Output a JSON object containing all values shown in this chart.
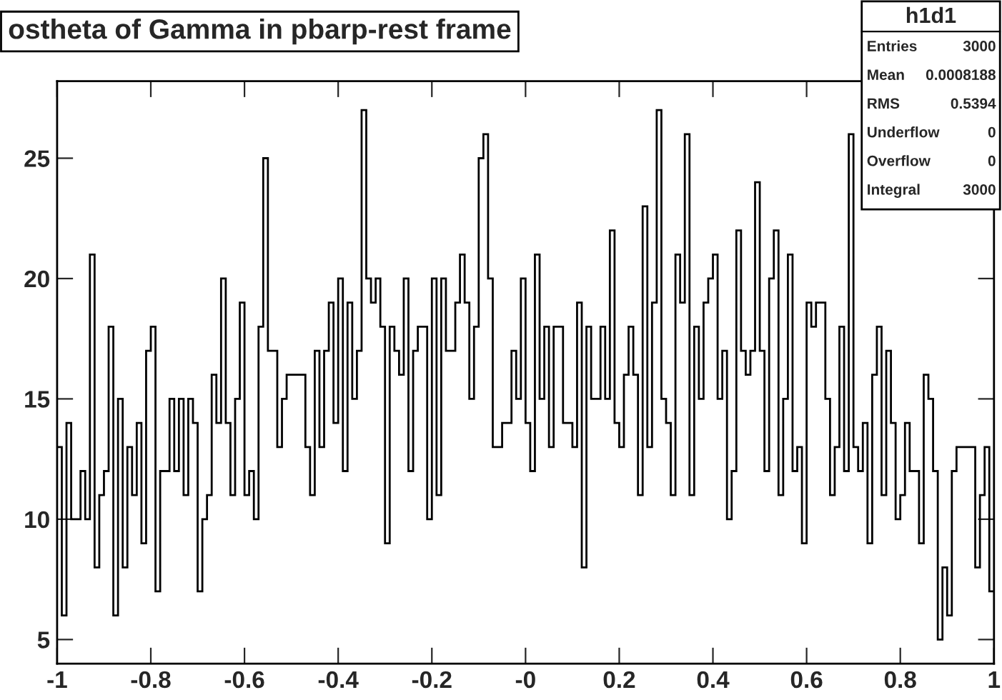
{
  "chart_data": {
    "type": "histogram",
    "title": "ostheta of Gamma in pbarp-rest frame",
    "bins": [
      -1.0,
      -0.99,
      -0.98,
      -0.97,
      -0.96,
      -0.95,
      -0.94,
      -0.93,
      -0.92,
      -0.91,
      -0.9,
      -0.89,
      -0.88,
      -0.87,
      -0.86,
      -0.85,
      -0.84,
      -0.83,
      -0.82,
      -0.81,
      -0.8,
      -0.79,
      -0.78,
      -0.77,
      -0.76,
      -0.75,
      -0.74,
      -0.73,
      -0.72,
      -0.71,
      -0.7,
      -0.69,
      -0.68,
      -0.67,
      -0.66,
      -0.65,
      -0.64,
      -0.63,
      -0.62,
      -0.61,
      -0.6,
      -0.59,
      -0.58,
      -0.57,
      -0.56,
      -0.55,
      -0.54,
      -0.53,
      -0.52,
      -0.51,
      -0.5,
      -0.49,
      -0.48,
      -0.47,
      -0.46,
      -0.45,
      -0.44,
      -0.43,
      -0.42,
      -0.41,
      -0.4,
      -0.39,
      -0.38,
      -0.37,
      -0.36,
      -0.35,
      -0.34,
      -0.33,
      -0.32,
      -0.31,
      -0.3,
      -0.29,
      -0.28,
      -0.27,
      -0.26,
      -0.25,
      -0.24,
      -0.23,
      -0.22,
      -0.21,
      -0.2,
      -0.19,
      -0.18,
      -0.17,
      -0.16,
      -0.15,
      -0.14,
      -0.13,
      -0.12,
      -0.11,
      -0.1,
      -0.09,
      -0.08,
      -0.07,
      -0.06,
      -0.05,
      -0.04,
      -0.03,
      -0.02,
      -0.01,
      0.0,
      0.01,
      0.02,
      0.03,
      0.04,
      0.05,
      0.06,
      0.07,
      0.08,
      0.09,
      0.1,
      0.11,
      0.12,
      0.13,
      0.14,
      0.15,
      0.16,
      0.17,
      0.18,
      0.19,
      0.2,
      0.21,
      0.22,
      0.23,
      0.24,
      0.25,
      0.26,
      0.27,
      0.28,
      0.29,
      0.3,
      0.31,
      0.32,
      0.33,
      0.34,
      0.35,
      0.36,
      0.37,
      0.38,
      0.39,
      0.4,
      0.41,
      0.42,
      0.43,
      0.44,
      0.45,
      0.46,
      0.47,
      0.48,
      0.49,
      0.5,
      0.51,
      0.52,
      0.53,
      0.54,
      0.55,
      0.56,
      0.57,
      0.58,
      0.59,
      0.6,
      0.61,
      0.62,
      0.63,
      0.64,
      0.65,
      0.66,
      0.67,
      0.68,
      0.69,
      0.7,
      0.71,
      0.72,
      0.73,
      0.74,
      0.75,
      0.76,
      0.77,
      0.78,
      0.79,
      0.8,
      0.81,
      0.82,
      0.83,
      0.84,
      0.85,
      0.86,
      0.87,
      0.88,
      0.89,
      0.9,
      0.91,
      0.92,
      0.93,
      0.94,
      0.95,
      0.96,
      0.97,
      0.98,
      0.99,
      1.0
    ],
    "values": [
      13,
      6,
      14,
      10,
      10,
      12,
      10,
      21,
      8,
      11,
      12,
      18,
      6,
      15,
      8,
      13,
      11,
      14,
      9,
      17,
      18,
      7,
      12,
      12,
      15,
      12,
      15,
      11,
      15,
      14,
      7,
      10,
      11,
      16,
      14,
      20,
      14,
      11,
      15,
      19,
      11,
      12,
      10,
      18,
      25,
      17,
      17,
      13,
      15,
      16,
      16,
      16,
      16,
      13,
      11,
      17,
      13,
      17,
      19,
      14,
      20,
      12,
      19,
      15,
      17,
      27,
      20,
      19,
      20,
      18,
      9,
      18,
      17,
      16,
      20,
      12,
      17,
      18,
      18,
      10,
      20,
      11,
      20,
      17,
      17,
      19,
      21,
      19,
      15,
      18,
      25,
      26,
      20,
      13,
      13,
      14,
      14,
      17,
      15,
      20,
      14,
      12,
      21,
      15,
      18,
      13,
      18,
      18,
      14,
      14,
      13,
      19,
      8,
      18,
      15,
      15,
      18,
      15,
      22,
      14,
      13,
      16,
      18,
      16,
      11,
      23,
      13,
      19,
      27,
      15,
      14,
      11,
      21,
      19,
      26,
      11,
      18,
      15,
      19,
      20,
      21,
      15,
      17,
      10,
      12,
      22,
      17,
      16,
      17,
      24,
      17,
      12,
      20,
      22,
      11,
      15,
      21,
      12,
      13,
      9,
      19,
      18,
      19,
      19,
      15,
      11,
      13,
      18,
      12,
      26,
      13,
      12,
      14,
      9,
      16,
      18,
      11,
      17,
      14,
      10,
      11,
      14,
      12,
      12,
      9,
      16,
      15,
      12,
      5,
      8,
      6,
      12,
      13,
      13,
      13,
      13,
      8,
      11,
      13,
      7
    ],
    "color": "#000000",
    "xlim": [
      -1,
      1
    ],
    "xticks": [
      -1,
      -0.8,
      -0.6,
      -0.4,
      -0.2,
      {
        "value": 0,
        "label": "-0"
      },
      0.2,
      0.4,
      0.6,
      0.8,
      1
    ],
    "ylim": [
      4,
      28.2
    ],
    "yticks": [
      5,
      10,
      15,
      20,
      25
    ],
    "grid": false,
    "annotations": [
      "h1d1",
      "Entries",
      "3000",
      "Mean",
      "0.0008188",
      "RMS",
      "0.5394",
      "Underflow",
      "0",
      "Overflow",
      "0",
      "Integral",
      "3000"
    ]
  }
}
